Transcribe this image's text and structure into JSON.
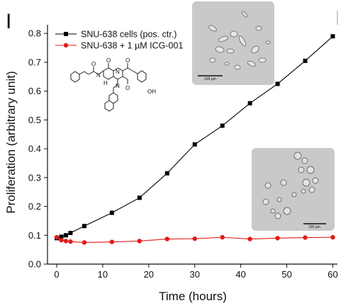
{
  "panel_label": "I",
  "chart_data": {
    "type": "line",
    "title": "",
    "xlabel": "Time (hours)",
    "ylabel": "Proliferation (arbitrary unit)",
    "xlim": [
      -2,
      61
    ],
    "ylim": [
      0.0,
      0.83
    ],
    "xticks": [
      0,
      10,
      20,
      30,
      40,
      50,
      60
    ],
    "yticks": [
      0.0,
      0.1,
      0.2,
      0.3,
      0.4,
      0.5,
      0.6,
      0.7,
      0.8
    ],
    "ytick_labels": [
      "0.0",
      "0.1",
      "0.2",
      "0.3",
      "0.4",
      "0.5",
      "0.6",
      "0.7",
      "0.8"
    ],
    "grid": false,
    "legend_position": "top-left",
    "series": [
      {
        "name": "SNU-638 cells (pos. ctr.)",
        "color": "#000000",
        "marker": "square",
        "x": [
          0,
          1,
          2,
          3,
          6,
          12,
          18,
          24,
          30,
          36,
          42,
          48,
          54,
          60
        ],
        "y": [
          0.09,
          0.095,
          0.1,
          0.108,
          0.132,
          0.178,
          0.23,
          0.315,
          0.415,
          0.48,
          0.558,
          0.625,
          0.705,
          0.79
        ]
      },
      {
        "name": "SNU-638 + 1 µM ICG-001",
        "color": "#e31a1c",
        "marker": "circle",
        "x": [
          0,
          1,
          2,
          3,
          6,
          12,
          18,
          24,
          30,
          36,
          42,
          48,
          54,
          60
        ],
        "y": [
          0.093,
          0.083,
          0.08,
          0.078,
          0.075,
          0.077,
          0.08,
          0.087,
          0.088,
          0.093,
          0.087,
          0.09,
          0.092,
          0.093
        ]
      }
    ]
  },
  "insets": {
    "top_scale_label": "100 µm",
    "bottom_scale_label": "100 µm"
  },
  "structure": {
    "oh_label": "OH",
    "o_label": "O",
    "n_label": "N",
    "h_label": "H"
  }
}
